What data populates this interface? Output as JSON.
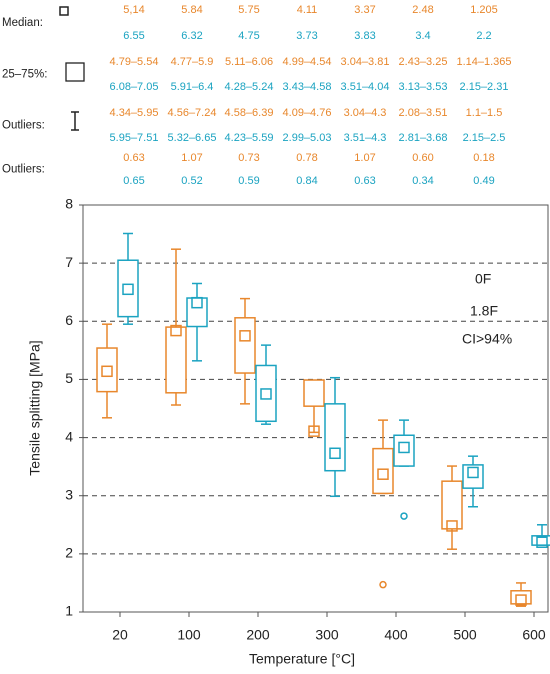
{
  "table": {
    "rows": [
      {
        "label": "Median:",
        "lines": [
          [
            "5,14",
            "5.84",
            "5.75",
            "4.11",
            "3.37",
            "2.48",
            "1.205"
          ],
          [
            "6.55",
            "6.32",
            "4.75",
            "3.73",
            "3.83",
            "3.4",
            "2.2"
          ]
        ]
      },
      {
        "label": "25–75%:",
        "lines": [
          [
            "4.79–5.54",
            "4.77–5.9",
            "5.11–6.06",
            "4.99–4.54",
            "3.04–3.81",
            "2.43–3.25",
            "1.14–1.365"
          ],
          [
            "6.08–7.05",
            "5.91–6.4",
            "4.28–5.24",
            "3.43–4.58",
            "3.51–4.04",
            "3.13–3.53",
            "2.15–2.31"
          ]
        ]
      },
      {
        "label": "Outliers:",
        "lines": [
          [
            "4.34–5.95",
            "4.56–7.24",
            "4.58–6.39",
            "4.09–4.76",
            "3.04–4.3",
            "2.08–3.51",
            "1.1–1.5"
          ],
          [
            "5.95–7.51",
            "5.32–6.65",
            "4.23–5.59",
            "2.99–5.03",
            "3.51–4.3",
            "2.81–3.68",
            "2.15–2.5"
          ]
        ]
      },
      {
        "label": "Outliers:",
        "lines": [
          [
            "0.63",
            "1.07",
            "0.73",
            "0.78",
            "1.07",
            "0.60",
            "0.18"
          ],
          [
            "0.65",
            "0.52",
            "0.59",
            "0.84",
            "0.63",
            "0.34",
            "0.49"
          ]
        ]
      }
    ]
  },
  "chart_data": {
    "type": "box",
    "x_label": "Temperature [°C]",
    "y_label": "Tensile splitting [MPa]",
    "categories": [
      "20",
      "100",
      "200",
      "300",
      "400",
      "500",
      "600"
    ],
    "ylim": [
      1,
      8
    ],
    "yticks": [
      1,
      2,
      3,
      4,
      5,
      6,
      7,
      8
    ],
    "grid": true,
    "annotation": "CI>94%",
    "series": [
      {
        "name": "0F",
        "color": "#e8872c",
        "median": [
          5.14,
          5.84,
          5.75,
          4.11,
          3.37,
          2.48,
          1.205
        ],
        "q1": [
          4.79,
          4.77,
          5.11,
          4.99,
          3.04,
          2.43,
          1.14
        ],
        "q3": [
          5.54,
          5.9,
          6.06,
          4.54,
          3.81,
          3.25,
          1.365
        ],
        "low": [
          4.34,
          4.56,
          4.58,
          4.09,
          3.04,
          2.08,
          1.1
        ],
        "high": [
          5.95,
          7.24,
          6.39,
          4.76,
          4.3,
          3.51,
          1.5
        ],
        "outliers": [
          [],
          [],
          [],
          [],
          [
            1.47
          ],
          [],
          []
        ]
      },
      {
        "name": "1.8F",
        "color": "#1ba3c1",
        "median": [
          6.55,
          6.32,
          4.75,
          3.73,
          3.83,
          3.4,
          2.2
        ],
        "q1": [
          6.08,
          5.91,
          4.28,
          3.43,
          3.51,
          3.13,
          2.15
        ],
        "q3": [
          7.05,
          6.4,
          5.24,
          4.58,
          4.04,
          3.53,
          2.31
        ],
        "low": [
          5.95,
          5.32,
          4.23,
          2.99,
          3.51,
          2.81,
          2.15
        ],
        "high": [
          7.51,
          6.65,
          5.59,
          5.03,
          4.3,
          3.68,
          2.5
        ],
        "outliers": [
          [],
          [],
          [],
          [],
          [
            2.65
          ],
          [],
          []
        ]
      }
    ]
  }
}
